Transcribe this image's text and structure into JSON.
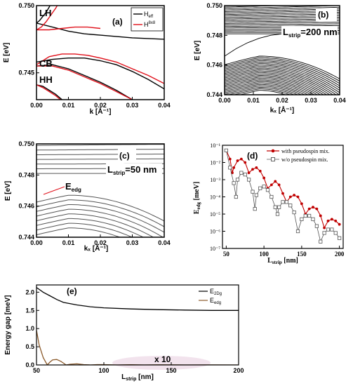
{
  "chart_data": [
    {
      "panel": "(a)",
      "type": "line",
      "xlabel": "k [Å⁻¹]",
      "ylabel": "E [eV]",
      "xlim": [
        0.0,
        0.04
      ],
      "ylim": [
        0.743,
        0.75
      ],
      "xticks": [
        "0.00",
        "0.01",
        "0.02",
        "0.03",
        "0.04"
      ],
      "yticks": [
        "0.750",
        "0.745"
      ],
      "band_labels": [
        "LH",
        "CB",
        "HH"
      ],
      "legend": {
        "position": "top-right",
        "entries": [
          {
            "name_main": "H",
            "name_sub": "eff",
            "name_sup": "",
            "color": "#000000"
          },
          {
            "name_main": "H",
            "name_sub": "",
            "name_sup": "8x8",
            "color": "#e0101a"
          }
        ]
      },
      "series": [
        {
          "name": "H_eff",
          "color": "#000000",
          "curves": [
            {
              "x": [
                0,
                0.005,
                0.01,
                0.015,
                0.02,
                0.03,
                0.04
              ],
              "y": [
                0.7487,
                0.7484,
                0.7481,
                0.7479,
                0.7478,
                0.7476,
                0.7475
              ]
            },
            {
              "x": [
                0.0,
                0.001,
                0.002,
                0.003,
                0.004,
                0.005
              ],
              "y": [
                0.7487,
                0.7489,
                0.7492,
                0.7495,
                0.7499,
                0.7503
              ]
            },
            {
              "x": [
                0,
                0.005,
                0.01,
                0.015,
                0.02,
                0.025,
                0.03,
                0.035,
                0.04
              ],
              "y": [
                0.7458,
                0.746,
                0.7461,
                0.7461,
                0.7459,
                0.7456,
                0.7451,
                0.7445,
                0.7438
              ]
            },
            {
              "x": [
                0,
                0.005,
                0.01,
                0.015,
                0.02,
                0.025,
                0.03
              ],
              "y": [
                0.7455,
                0.7456,
                0.7453,
                0.7448,
                0.7443,
                0.7437,
                0.743
              ]
            },
            {
              "x": [
                0,
                0.002,
                0.004,
                0.006,
                0.008,
                0.009
              ],
              "y": [
                0.7441,
                0.744,
                0.7437,
                0.7434,
                0.743,
                0.7428
              ]
            }
          ]
        },
        {
          "name": "H_8x8",
          "color": "#e0101a",
          "curves": [
            {
              "x": [
                0,
                0.004,
                0.008,
                0.012,
                0.016,
                0.02
              ],
              "y": [
                0.7482,
                0.7482,
                0.7483,
                0.7484,
                0.7484,
                0.7483
              ]
            },
            {
              "x": [
                0.0,
                0.0015,
                0.003,
                0.0045,
                0.006,
                0.007
              ],
              "y": [
                0.7482,
                0.7484,
                0.7488,
                0.7493,
                0.7498,
                0.7502
              ]
            },
            {
              "x": [
                0,
                0.004,
                0.008,
                0.012,
                0.016,
                0.02,
                0.025,
                0.03,
                0.035,
                0.04
              ],
              "y": [
                0.7456,
                0.7462,
                0.7464,
                0.7464,
                0.7463,
                0.7461,
                0.7458,
                0.7453,
                0.7448,
                0.7442
              ]
            },
            {
              "x": [
                0,
                0.005,
                0.01,
                0.015,
                0.02,
                0.025,
                0.03
              ],
              "y": [
                0.7455,
                0.7455,
                0.7452,
                0.7447,
                0.7442,
                0.7436,
                0.743
              ]
            },
            {
              "x": [
                0,
                0.002,
                0.004,
                0.006,
                0.008,
                0.0095
              ],
              "y": [
                0.7441,
                0.7439,
                0.7436,
                0.7433,
                0.7429,
                0.7427
              ]
            }
          ]
        }
      ]
    },
    {
      "panel": "(b)",
      "type": "line",
      "xlabel": "kₓ [Å⁻¹]",
      "ylabel": "E [eV]",
      "xlim": [
        0.0,
        0.04
      ],
      "ylim": [
        0.744,
        0.75
      ],
      "xticks": [
        "0.00",
        "0.01",
        "0.02",
        "0.03",
        "0.04"
      ],
      "yticks": [
        "0.744",
        "0.746",
        "0.748",
        "0.750"
      ],
      "annotation_main": "L",
      "annotation_sub": "strip",
      "annotation_value": "=200 nm",
      "color": "#000000",
      "bands": {
        "upper": {
          "count": 22,
          "start_first": 0.7481,
          "start_step": 0.0001,
          "slope": 0.045,
          "curvature": 1.2
        },
        "lower": {
          "count": 24,
          "start_first": 0.7461,
          "start_step": -0.0001,
          "peak_x": 0.012,
          "peak_height": 0.0005,
          "drop": 1.4
        },
        "edge_state": {
          "x": [
            0,
            0.004,
            0.008,
            0.012,
            0.016,
            0.02
          ],
          "y": [
            0.7466,
            0.7471,
            0.7475,
            0.7478,
            0.748,
            0.7481
          ]
        }
      }
    },
    {
      "panel": "(c)",
      "type": "line",
      "xlabel": "kₓ [Å⁻¹]",
      "ylabel": "E [eV]",
      "xlim": [
        0.0,
        0.04
      ],
      "ylim": [
        0.744,
        0.75
      ],
      "xticks": [
        "0.00",
        "0.01",
        "0.02",
        "0.03",
        "0.04"
      ],
      "yticks": [
        "0.744",
        "0.746",
        "0.748",
        "0.750"
      ],
      "annotation_main": "L",
      "annotation_sub": "strip",
      "annotation_value": "=50 nm",
      "edge_label_main": "E",
      "edge_label_sub": "edg",
      "edge_label_color": "#e0101a",
      "color": "#555555",
      "bands": {
        "upper": {
          "count": 7,
          "start_first": 0.7481,
          "start_step": 0.0003,
          "slope": 0.04,
          "curvature": 1.0
        },
        "lower": {
          "count": 8,
          "start_first": 0.7463,
          "start_step": -0.0003,
          "peak_x": 0.01,
          "peak_height": 0.0004,
          "drop": 1.4
        }
      }
    },
    {
      "panel": "(d)",
      "type": "line",
      "xlabel": "L_strip [nm]",
      "ylabel": "E_edg [meV]",
      "xlim": [
        45,
        205
      ],
      "ylim_log10": [
        -7,
        -1
      ],
      "xticks": [
        "50",
        "100",
        "150",
        "200"
      ],
      "ytick_labels": [
        "10⁻¹",
        "10⁻²",
        "10⁻³",
        "10⁻⁴",
        "10⁻⁵",
        "10⁻⁶",
        "10⁻⁷"
      ],
      "legend": {
        "position": "top-right",
        "entries": [
          {
            "name": "with pseudospin mix.",
            "color": "#c00000",
            "marker": "filled-circle"
          },
          {
            "name": "w/o pseudospin mix.",
            "color": "#555555",
            "marker": "open-square"
          }
        ]
      },
      "series": [
        {
          "name": "with pseudospin mix.",
          "color": "#c00000",
          "x": [
            50,
            55,
            58,
            60,
            65,
            70,
            75,
            80,
            85,
            90,
            95,
            100,
            105,
            110,
            115,
            120,
            125,
            130,
            135,
            140,
            145,
            150,
            155,
            160,
            165,
            170,
            175,
            180,
            185,
            190,
            195,
            200
          ],
          "log10y": [
            -1.3,
            -1.8,
            -2.6,
            -2.3,
            -1.9,
            -1.8,
            -2.0,
            -2.6,
            -2.4,
            -2.3,
            -2.5,
            -2.9,
            -3.5,
            -3.3,
            -3.1,
            -3.3,
            -3.8,
            -4.3,
            -4.0,
            -3.9,
            -4.0,
            -4.4,
            -5.0,
            -4.7,
            -4.6,
            -4.7,
            -5.1,
            -5.8,
            -5.4,
            -5.3,
            -5.4,
            -5.6
          ]
        },
        {
          "name": "w/o pseudospin mix.",
          "color": "#555555",
          "x": [
            50,
            55,
            60,
            63,
            65,
            70,
            75,
            80,
            85,
            88,
            90,
            95,
            100,
            105,
            110,
            115,
            118,
            120,
            125,
            130,
            135,
            140,
            145,
            150,
            155,
            160,
            165,
            170,
            175,
            180,
            185,
            190,
            195,
            200
          ],
          "log10y": [
            -1.3,
            -2.3,
            -3.2,
            -4.0,
            -3.0,
            -2.6,
            -2.7,
            -3.0,
            -3.7,
            -4.7,
            -3.9,
            -3.5,
            -3.4,
            -3.6,
            -4.0,
            -4.6,
            -5.0,
            -4.6,
            -4.3,
            -4.3,
            -4.5,
            -4.9,
            -6.0,
            -5.3,
            -5.1,
            -5.1,
            -5.3,
            -5.7,
            -6.6,
            -6.1,
            -5.9,
            -5.9,
            -6.1,
            -6.4
          ]
        }
      ]
    },
    {
      "panel": "(e)",
      "type": "line",
      "xlabel": "L_strip [nm]",
      "ylabel": "Energy gap [meV]",
      "xlim": [
        50,
        200
      ],
      "ylim": [
        0,
        2.2
      ],
      "xticks": [
        "50",
        "100",
        "150",
        "200"
      ],
      "yticks": [
        "0.0",
        "0.5",
        "1.0",
        "1.5",
        "2.0"
      ],
      "annotation": "x 10",
      "legend": {
        "position": "top-right",
        "entries": [
          {
            "name_main": "E",
            "name_sub": "2Dg",
            "color": "#000000"
          },
          {
            "name_main": "E",
            "name_sub": "edg",
            "color": "#8b5a2b"
          }
        ]
      },
      "series": [
        {
          "name": "E_2Dg",
          "color": "#000000",
          "x": [
            50,
            55,
            60,
            65,
            70,
            80,
            90,
            100,
            120,
            140,
            160,
            180,
            200
          ],
          "y": [
            2.13,
            2.0,
            1.9,
            1.8,
            1.72,
            1.65,
            1.6,
            1.57,
            1.54,
            1.52,
            1.51,
            1.5,
            1.5
          ]
        },
        {
          "name": "E_edg",
          "color": "#8b5a2b",
          "x": [
            50,
            52,
            55,
            58,
            60,
            62,
            65,
            68,
            70,
            72,
            75,
            80,
            85,
            90,
            95,
            100,
            110,
            120,
            130,
            140,
            160,
            180,
            200
          ],
          "y": [
            0.95,
            0.55,
            0.2,
            0.0,
            0.08,
            0.14,
            0.15,
            0.1,
            0.05,
            0.0,
            0.02,
            0.03,
            0.01,
            0.0,
            0.01,
            0.01,
            0.0,
            0.005,
            0.0,
            0.004,
            0.0,
            0.002,
            0.0
          ]
        }
      ]
    }
  ]
}
